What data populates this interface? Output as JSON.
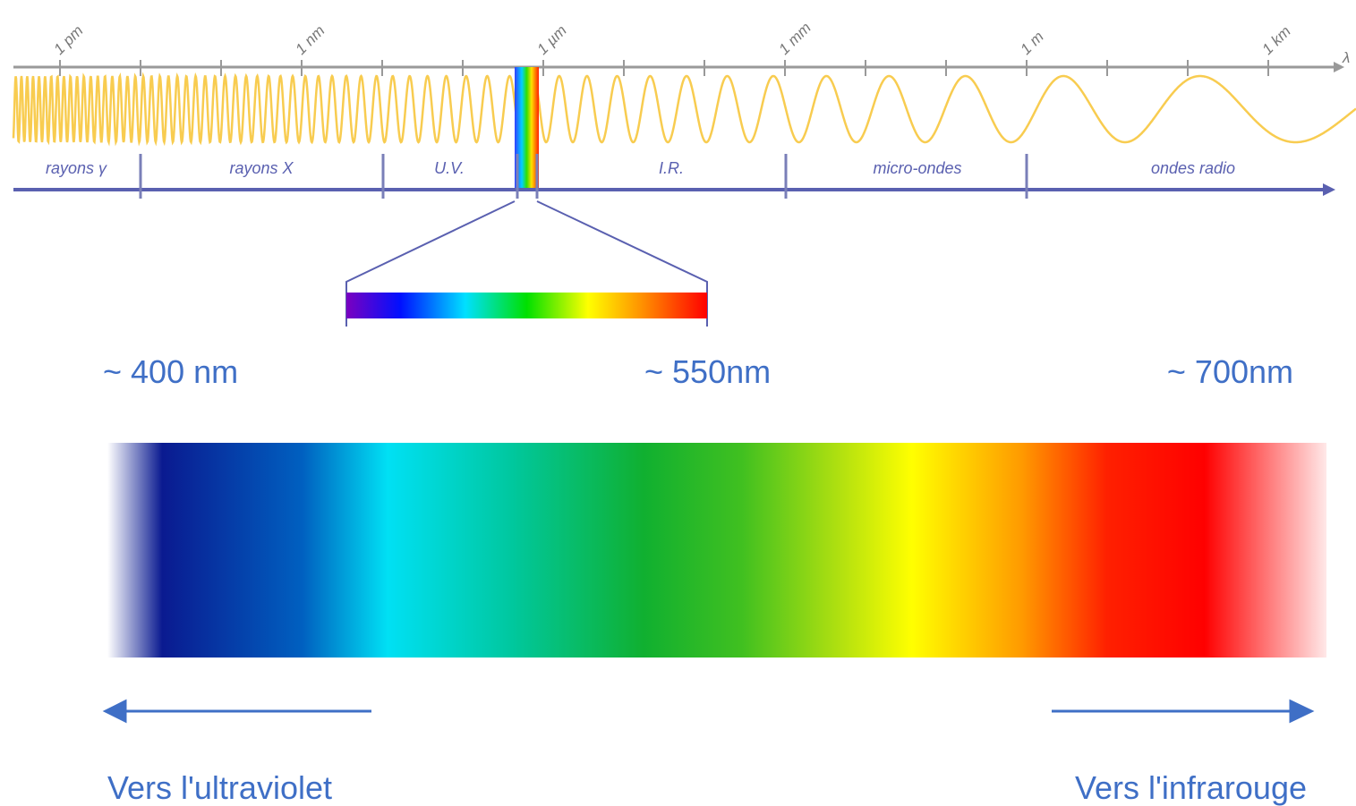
{
  "scale": {
    "ticks": [
      "1 pm",
      "1 nm",
      "1 µm",
      "1 mm",
      "1 m",
      "1 km"
    ],
    "axis_label": "λ"
  },
  "bands": [
    "rayons γ",
    "rayons X",
    "U.V.",
    "I.R.",
    "micro-ondes",
    "ondes radio"
  ],
  "visible": {
    "labels": [
      "~ 400 nm",
      "~ 550nm",
      "~ 700nm"
    ],
    "directions": [
      "Vers l'ultraviolet",
      "Vers l'infrarouge"
    ]
  }
}
